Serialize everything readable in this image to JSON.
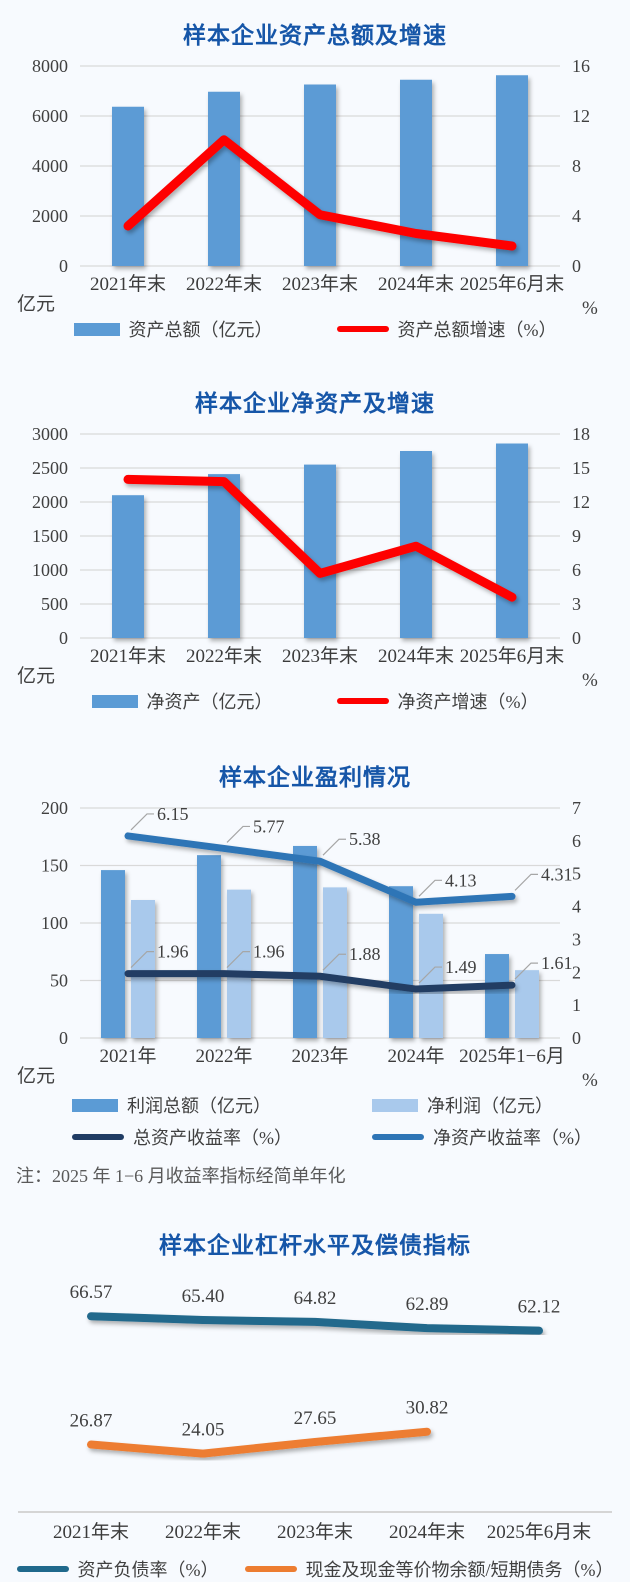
{
  "chart_data": [
    {
      "id": "total-assets",
      "type": "bar",
      "title": "样本企业资产总额及增速",
      "unit_left": "亿元",
      "unit_right": "%",
      "categories": [
        "2021年末",
        "2022年末",
        "2023年末",
        "2024年末",
        "2025年6月末"
      ],
      "left_axis": {
        "min": 0,
        "max": 8000,
        "ticks": [
          0,
          2000,
          4000,
          6000,
          8000
        ]
      },
      "right_axis": {
        "min": 0,
        "max": 16,
        "ticks": [
          0,
          4,
          8,
          12,
          16
        ]
      },
      "bar_series": [
        {
          "name": "资产总额（亿元）",
          "color": "#5b9bd5",
          "values": [
            6370,
            6970,
            7260,
            7450,
            7630
          ]
        }
      ],
      "line_series": [
        {
          "name": "资产总额增速（%）",
          "color": "#fe0000",
          "values": [
            3.2,
            10.1,
            4.1,
            2.6,
            1.6
          ]
        }
      ]
    },
    {
      "id": "net-assets",
      "type": "bar",
      "title": "样本企业净资产及增速",
      "unit_left": "亿元",
      "unit_right": "%",
      "categories": [
        "2021年末",
        "2022年末",
        "2023年末",
        "2024年末",
        "2025年6月末"
      ],
      "left_axis": {
        "min": 0,
        "max": 3000,
        "ticks": [
          0,
          500,
          1000,
          1500,
          2000,
          2500,
          3000
        ]
      },
      "right_axis": {
        "min": 0,
        "max": 18,
        "ticks": [
          0,
          3,
          6,
          9,
          12,
          15,
          18
        ]
      },
      "bar_series": [
        {
          "name": "净资产（亿元）",
          "color": "#5b9bd5",
          "values": [
            2100,
            2410,
            2550,
            2750,
            2860
          ]
        }
      ],
      "line_series": [
        {
          "name": "净资产增速（%）",
          "color": "#fe0000",
          "values": [
            14.0,
            13.8,
            5.7,
            8.1,
            3.6
          ]
        }
      ]
    },
    {
      "id": "profitability",
      "type": "bar",
      "title": "样本企业盈利情况",
      "unit_left": "亿元",
      "unit_right": "%",
      "categories": [
        "2021年",
        "2022年",
        "2023年",
        "2024年",
        "2025年1−6月"
      ],
      "left_axis": {
        "min": 0,
        "max": 200,
        "ticks": [
          0,
          50,
          100,
          150,
          200
        ]
      },
      "right_axis": {
        "min": 0,
        "max": 7,
        "ticks": [
          0,
          1,
          2,
          3,
          4,
          5,
          6,
          7
        ]
      },
      "bar_series": [
        {
          "name": "利润总额（亿元）",
          "color": "#5b9bd5",
          "values": [
            146,
            159,
            167,
            132,
            73
          ]
        },
        {
          "name": "净利润（亿元）",
          "color": "#a9c9ec",
          "values": [
            120,
            129,
            131,
            108,
            59
          ]
        }
      ],
      "line_series": [
        {
          "name": "总资产收益率（%）",
          "color": "#203c64",
          "values": [
            1.96,
            1.96,
            1.88,
            1.49,
            1.61
          ],
          "labels": "leader"
        },
        {
          "name": "净资产收益率（%）",
          "color": "#2e75b6",
          "values": [
            6.15,
            5.77,
            5.38,
            4.13,
            4.31
          ],
          "labels": "leader"
        }
      ],
      "note": "注：2025 年 1−6 月收益率指标经简单年化"
    },
    {
      "id": "leverage",
      "type": "line",
      "title": "样本企业杠杆水平及偿债指标",
      "categories": [
        "2021年末",
        "2022年末",
        "2023年末",
        "2024年末",
        "2025年6月末"
      ],
      "ylim": [
        10,
        75
      ],
      "line_series": [
        {
          "name": "资产负债率（%）",
          "color": "#20698c",
          "values": [
            66.57,
            65.4,
            64.82,
            62.89,
            62.12
          ],
          "labels": "above"
        },
        {
          "name": "现金及现金等价物余额/短期债务（%）",
          "color": "#ed7d31",
          "values": [
            26.87,
            24.05,
            27.65,
            30.82
          ],
          "labels": "above"
        }
      ]
    }
  ]
}
